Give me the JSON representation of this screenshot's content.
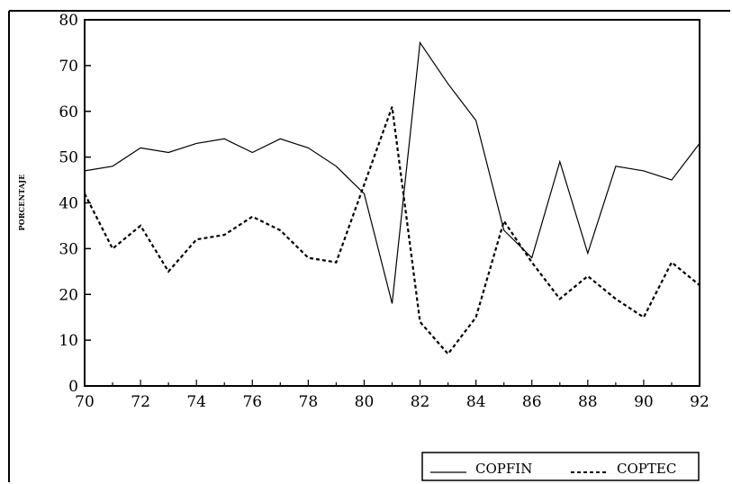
{
  "chart_data": {
    "type": "line",
    "title": "",
    "xlabel": "",
    "ylabel": "PORCENTAJE",
    "x": [
      70,
      71,
      72,
      73,
      74,
      75,
      76,
      77,
      78,
      79,
      80,
      81,
      82,
      83,
      84,
      85,
      86,
      87,
      88,
      89,
      90,
      91,
      92
    ],
    "x_ticks": [
      "70",
      "72",
      "74",
      "76",
      "78",
      "80",
      "82",
      "84",
      "86",
      "88",
      "90",
      "92"
    ],
    "y_ticks": [
      "0",
      "10",
      "20",
      "30",
      "40",
      "50",
      "60",
      "70",
      "80"
    ],
    "xlim": [
      70,
      92
    ],
    "ylim": [
      0,
      80
    ],
    "grid": false,
    "legend": "bottom-right",
    "series": [
      {
        "name": "COPFIN",
        "style": "solid",
        "color": "#000000",
        "values": [
          47,
          48,
          52,
          51,
          53,
          54,
          51,
          54,
          52,
          48,
          42,
          18,
          75,
          66,
          58,
          34,
          28,
          49,
          29,
          48,
          47,
          45,
          53
        ]
      },
      {
        "name": "COPTEC",
        "style": "dashed",
        "color": "#000000",
        "values": [
          42,
          30,
          35,
          25,
          32,
          33,
          37,
          34,
          28,
          27,
          44,
          61,
          14,
          7,
          15,
          36,
          27,
          19,
          24,
          19,
          15,
          27,
          22
        ]
      }
    ]
  }
}
